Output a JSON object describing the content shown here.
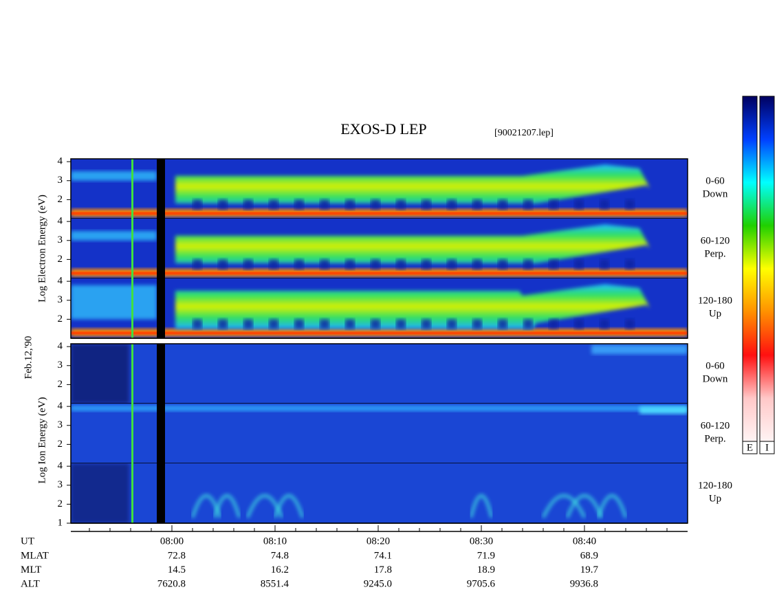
{
  "chart_data": {
    "type": "spectrogram",
    "title": "EXOS-D LEP",
    "file": "[90021207.lep]",
    "date_label": "Feb.12,'90",
    "ylim": [
      1,
      4.15
    ],
    "groups": [
      {
        "ylabel": "Log  Electron  Energy (eV)",
        "panels": [
          {
            "label": [
              "0-60",
              "Down"
            ],
            "yticks": [
              2,
              3,
              4
            ]
          },
          {
            "label": [
              "60-120",
              "Perp."
            ],
            "yticks": [
              2,
              3,
              4
            ]
          },
          {
            "label": [
              "120-180",
              "Up"
            ],
            "yticks": [
              2,
              3,
              4
            ]
          }
        ]
      },
      {
        "ylabel": "Log  Ion  Energy (eV)",
        "panels": [
          {
            "label": [
              "0-60",
              "Down"
            ],
            "yticks": [
              2,
              3,
              4
            ]
          },
          {
            "label": [
              "60-120",
              "Perp."
            ],
            "yticks": [
              2,
              3,
              4
            ]
          },
          {
            "label": [
              "120-180",
              "Up"
            ],
            "yticks": [
              1,
              2,
              3,
              4
            ]
          }
        ]
      }
    ],
    "x_label": "UT",
    "xlim": [
      470.2,
      530
    ],
    "xticks": [
      {
        "value": 480,
        "label": "08:00"
      },
      {
        "value": 490,
        "label": "08:10"
      },
      {
        "value": 500,
        "label": "08:20"
      },
      {
        "value": 510,
        "label": "08:30"
      },
      {
        "value": 520,
        "label": "08:40"
      }
    ],
    "xminorticks": [
      472,
      474,
      476,
      478,
      482,
      484,
      486,
      488,
      492,
      494,
      496,
      498,
      502,
      504,
      506,
      508,
      512,
      514,
      516,
      518,
      522,
      524,
      526,
      528
    ],
    "ephemeris": [
      {
        "name": "MLAT",
        "values": [
          72.8,
          74.8,
          74.1,
          71.9,
          68.9
        ]
      },
      {
        "name": "MLT",
        "values": [
          14.5,
          16.2,
          17.8,
          18.9,
          19.7
        ]
      },
      {
        "name": "ALT",
        "values": [
          7620.8,
          8551.4,
          9245,
          9705.6,
          9936.8
        ],
        "value_labels": [
          "7620.8",
          "8551.4",
          "9245.0",
          "9705.6",
          "9936.8"
        ]
      }
    ],
    "colorbar": {
      "labels": [
        "E",
        "I"
      ],
      "colors": [
        "#fff4f4",
        "#ffc8c8",
        "#ff1010",
        "#ff9000",
        "#ffff00",
        "#20d000",
        "#00ffff",
        "#0040ff",
        "#000060"
      ]
    }
  }
}
